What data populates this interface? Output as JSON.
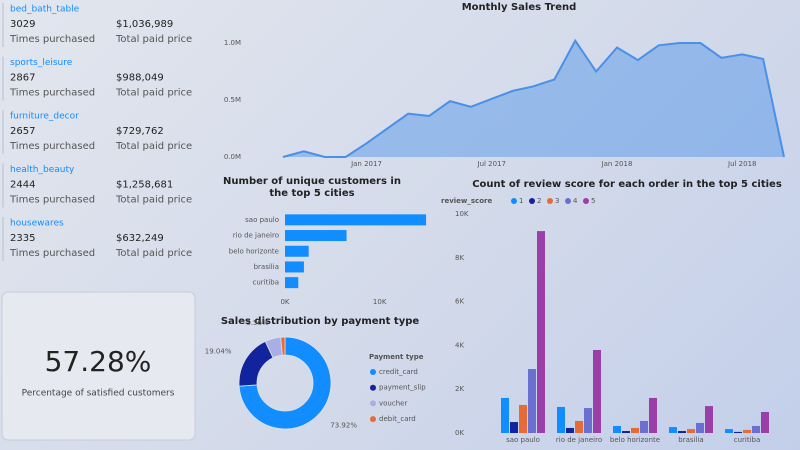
{
  "products": [
    {
      "name": "bed_bath_table",
      "count": 3029,
      "count_label": "Times purchased",
      "price": "$1,036,989",
      "price_label": "Total paid price"
    },
    {
      "name": "sports_leisure",
      "count": 2867,
      "count_label": "Times purchased",
      "price": "$988,049",
      "price_label": "Total paid price"
    },
    {
      "name": "furniture_decor",
      "count": 2657,
      "count_label": "Times purchased",
      "price": "$729,762",
      "price_label": "Total paid price"
    },
    {
      "name": "health_beauty",
      "count": 2444,
      "count_label": "Times purchased",
      "price": "$1,258,681",
      "price_label": "Total paid price"
    },
    {
      "name": "housewares",
      "count": 2335,
      "count_label": "Times purchased",
      "price": "$632,249",
      "price_label": "Total paid price"
    }
  ],
  "kpi": {
    "value": "57.28%",
    "label": "Percentage of satisfied customers"
  },
  "chart_data": [
    {
      "type": "area",
      "title": "Monthly Sales Trend",
      "color": "#4a90e8",
      "x": [
        "2016-09",
        "2016-10",
        "2016-11",
        "2016-12",
        "2017-01",
        "2017-02",
        "2017-03",
        "2017-04",
        "2017-05",
        "2017-06",
        "2017-07",
        "2017-08",
        "2017-09",
        "2017-10",
        "2017-11",
        "2017-12",
        "2018-01",
        "2018-02",
        "2018-03",
        "2018-04",
        "2018-05",
        "2018-06",
        "2018-07",
        "2018-08",
        "2018-09"
      ],
      "values": [
        0,
        50000,
        0,
        0,
        120000,
        250000,
        380000,
        360000,
        490000,
        440000,
        510000,
        580000,
        620000,
        680000,
        1020000,
        750000,
        960000,
        850000,
        980000,
        1000000,
        1000000,
        870000,
        900000,
        860000,
        0
      ],
      "xlim": [
        "2016-09",
        "2018-09"
      ],
      "xticks": [
        {
          "value": "2017-01",
          "label": "Jan 2017"
        },
        {
          "value": "2017-07",
          "label": "Jul 2017"
        },
        {
          "value": "2018-01",
          "label": "Jan 2018"
        },
        {
          "value": "2018-07",
          "label": "Jul 2018"
        }
      ],
      "ylim": [
        0,
        1000000
      ],
      "yticks": [
        {
          "value": 0,
          "label": "0.0M"
        },
        {
          "value": 500000,
          "label": "0.5M"
        },
        {
          "value": 1000000,
          "label": "1.0M"
        }
      ]
    },
    {
      "type": "hbar",
      "title": "Number of unique customers in the top 5 cities",
      "color": "#118dff",
      "categories": [
        "sao paulo",
        "rio de janeiro",
        "belo horizonte",
        "brasilia",
        "curitiba"
      ],
      "values": [
        14900,
        6500,
        2500,
        2000,
        1400
      ],
      "xlim": [
        0,
        15000
      ],
      "xticks": [
        {
          "value": 0,
          "label": "0K"
        },
        {
          "value": 10000,
          "label": "10K"
        }
      ]
    },
    {
      "type": "donut",
      "title": "Sales distribution by payment type",
      "legend_title": "Payment type",
      "categories": [
        "credit_card",
        "payment_slip",
        "voucher",
        "debit_card"
      ],
      "values": [
        73.92,
        19.04,
        5.56,
        1.48
      ],
      "value_labels": [
        "73.92%",
        "19.04%",
        "5.56%",
        null
      ],
      "colors": [
        "#118dff",
        "#12239e",
        "#a9aee6",
        "#e66c37"
      ]
    },
    {
      "type": "grouped_bar",
      "title": "Count of review score for each order in the top 5 cities",
      "legend_title": "review_score",
      "categories": [
        "sao paulo",
        "rio de janeiro",
        "belo horizonte",
        "brasilia",
        "curitiba"
      ],
      "series": [
        {
          "name": "1",
          "color": "#118dff",
          "values": [
            1600,
            1190,
            320,
            270,
            180
          ]
        },
        {
          "name": "2",
          "color": "#12239e",
          "values": [
            500,
            230,
            90,
            90,
            50
          ]
        },
        {
          "name": "3",
          "color": "#e66c37",
          "values": [
            1280,
            550,
            230,
            180,
            140
          ]
        },
        {
          "name": "4",
          "color": "#6b6fcf",
          "values": [
            2920,
            1140,
            550,
            460,
            320
          ]
        },
        {
          "name": "5",
          "color": "#9b3fa8",
          "values": [
            9220,
            3790,
            1600,
            1230,
            960
          ]
        }
      ],
      "ylim": [
        0,
        10000
      ],
      "yticks": [
        {
          "value": 0,
          "label": "0K"
        },
        {
          "value": 2000,
          "label": "2K"
        },
        {
          "value": 4000,
          "label": "4K"
        },
        {
          "value": 6000,
          "label": "6K"
        },
        {
          "value": 8000,
          "label": "8K"
        },
        {
          "value": 10000,
          "label": "10K"
        }
      ]
    }
  ]
}
